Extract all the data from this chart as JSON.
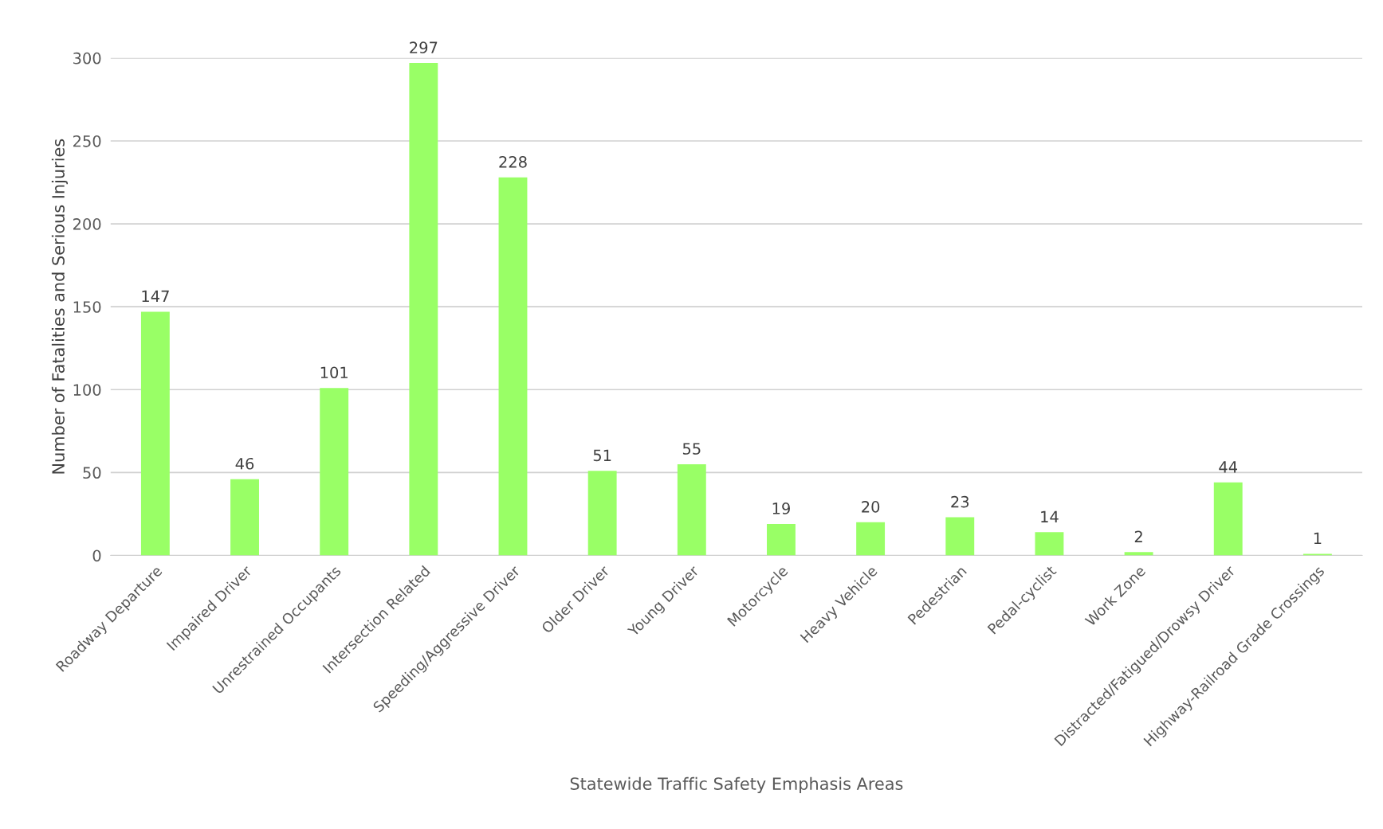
{
  "chart_data": {
    "type": "bar",
    "xlabel": "Statewide Traffic Safety Emphasis Areas",
    "ylabel": "Number of Fatalities and Serious Injuries",
    "categories": [
      "Roadway Departure",
      "Impaired Driver",
      "Unrestrained Occupants",
      "Intersection Related",
      "Speeding/Aggressive Driver",
      "Older Driver",
      "Young Driver",
      "Motorcycle",
      "Heavy Vehicle",
      "Pedestrian",
      "Pedal-cyclist",
      "Work Zone",
      "Distracted/Fatigued/Drowsy Driver",
      "Highway-Railroad Grade Crossings"
    ],
    "values": [
      147,
      46,
      101,
      297,
      228,
      51,
      55,
      19,
      20,
      23,
      14,
      2,
      44,
      1
    ],
    "color": "#99ff66",
    "ylim": [
      0,
      300
    ],
    "yticks": [
      0,
      50,
      100,
      150,
      200,
      250,
      300
    ],
    "grid": "y",
    "data_labels": true
  }
}
